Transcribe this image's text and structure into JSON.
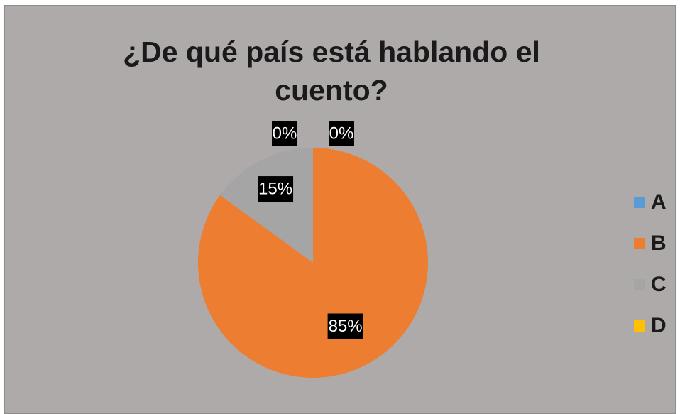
{
  "chart_data": {
    "type": "pie",
    "title": "¿De qué país está hablando el cuento?",
    "categories": [
      "A",
      "B",
      "C",
      "D"
    ],
    "values": [
      0,
      85,
      15,
      0
    ],
    "data_labels": [
      "0%",
      "85%",
      "15%",
      "0%"
    ],
    "colors": [
      "#5b9bd5",
      "#ed7d31",
      "#a5a5a5",
      "#ffc000"
    ],
    "legend": "right"
  },
  "colors": {
    "background": "#aeaaaa",
    "label_box": "#000000"
  }
}
